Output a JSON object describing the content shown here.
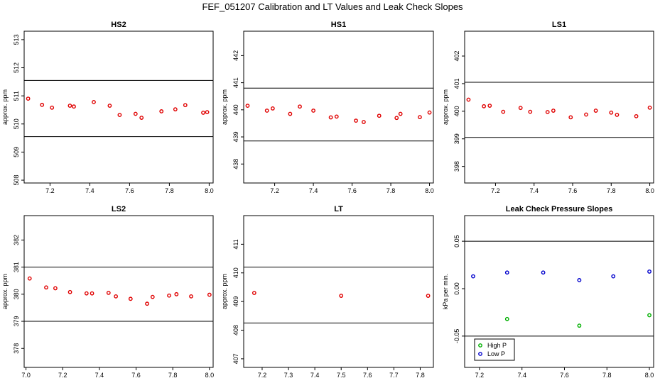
{
  "title": "FEF_051207  Calibration and LT Values and Leak Check Slopes",
  "chart_data": [
    {
      "type": "scatter",
      "title": "HS2",
      "ylabel": "approx. ppm",
      "xlim": [
        7.07,
        8.02
      ],
      "ylim": [
        507.9,
        513.3
      ],
      "xticks": [
        "7.2",
        "7.4",
        "7.6",
        "7.8",
        "8.0"
      ],
      "yticks": [
        "508",
        "509",
        "510",
        "511",
        "512",
        "513"
      ],
      "hlines": [
        511.55,
        509.55
      ],
      "series": [
        {
          "color": "#e00000",
          "points": [
            [
              7.09,
              510.9
            ],
            [
              7.16,
              510.68
            ],
            [
              7.21,
              510.58
            ],
            [
              7.3,
              510.65
            ],
            [
              7.32,
              510.62
            ],
            [
              7.42,
              510.78
            ],
            [
              7.5,
              510.65
            ],
            [
              7.55,
              510.32
            ],
            [
              7.63,
              510.36
            ],
            [
              7.66,
              510.22
            ],
            [
              7.76,
              510.45
            ],
            [
              7.83,
              510.52
            ],
            [
              7.88,
              510.67
            ],
            [
              7.97,
              510.4
            ],
            [
              7.99,
              510.42
            ]
          ]
        }
      ]
    },
    {
      "type": "scatter",
      "title": "HS1",
      "ylabel": "approx. ppm",
      "xlim": [
        7.04,
        8.02
      ],
      "ylim": [
        437.3,
        442.9
      ],
      "xticks": [
        "7.2",
        "7.4",
        "7.6",
        "7.8",
        "8.0"
      ],
      "yticks": [
        "438",
        "439",
        "440",
        "441",
        "442"
      ],
      "hlines": [
        440.8,
        438.85
      ],
      "series": [
        {
          "color": "#e00000",
          "points": [
            [
              7.06,
              440.15
            ],
            [
              7.16,
              439.97
            ],
            [
              7.19,
              440.05
            ],
            [
              7.28,
              439.85
            ],
            [
              7.33,
              440.12
            ],
            [
              7.4,
              439.97
            ],
            [
              7.49,
              439.72
            ],
            [
              7.52,
              439.75
            ],
            [
              7.62,
              439.6
            ],
            [
              7.66,
              439.55
            ],
            [
              7.74,
              439.78
            ],
            [
              7.83,
              439.7
            ],
            [
              7.85,
              439.85
            ],
            [
              7.95,
              439.73
            ],
            [
              8.0,
              439.9
            ]
          ]
        }
      ]
    },
    {
      "type": "scatter",
      "title": "LS1",
      "ylabel": "approx. ppm",
      "xlim": [
        7.04,
        8.02
      ],
      "ylim": [
        397.4,
        402.9
      ],
      "xticks": [
        "7.2",
        "7.4",
        "7.6",
        "7.8",
        "8.0"
      ],
      "yticks": [
        "398",
        "399",
        "400",
        "401",
        "402"
      ],
      "hlines": [
        401.05,
        399.05
      ],
      "series": [
        {
          "color": "#e00000",
          "points": [
            [
              7.06,
              400.42
            ],
            [
              7.14,
              400.18
            ],
            [
              7.17,
              400.2
            ],
            [
              7.24,
              399.98
            ],
            [
              7.33,
              400.12
            ],
            [
              7.38,
              399.98
            ],
            [
              7.47,
              399.97
            ],
            [
              7.5,
              400.02
            ],
            [
              7.59,
              399.78
            ],
            [
              7.67,
              399.88
            ],
            [
              7.72,
              400.02
            ],
            [
              7.8,
              399.95
            ],
            [
              7.83,
              399.87
            ],
            [
              7.93,
              399.82
            ],
            [
              8.0,
              400.13
            ]
          ]
        }
      ]
    },
    {
      "type": "scatter",
      "title": "LS2",
      "ylabel": "approx. ppm",
      "xlim": [
        6.99,
        8.02
      ],
      "ylim": [
        377.3,
        382.9
      ],
      "xticks": [
        "7.0",
        "7.2",
        "7.4",
        "7.6",
        "7.8",
        "8.0"
      ],
      "yticks": [
        "378",
        "379",
        "380",
        "381",
        "382"
      ],
      "hlines": [
        381.0,
        379.0
      ],
      "series": [
        {
          "color": "#e00000",
          "points": [
            [
              7.02,
              380.58
            ],
            [
              7.11,
              380.25
            ],
            [
              7.16,
              380.22
            ],
            [
              7.24,
              380.08
            ],
            [
              7.33,
              380.03
            ],
            [
              7.36,
              380.03
            ],
            [
              7.45,
              380.05
            ],
            [
              7.49,
              379.92
            ],
            [
              7.57,
              379.83
            ],
            [
              7.66,
              379.65
            ],
            [
              7.69,
              379.9
            ],
            [
              7.78,
              379.95
            ],
            [
              7.82,
              380.0
            ],
            [
              7.9,
              379.92
            ],
            [
              8.0,
              379.98
            ]
          ]
        }
      ]
    },
    {
      "type": "scatter",
      "title": "LT",
      "ylabel": "approx. ppm",
      "xlim": [
        7.13,
        7.85
      ],
      "ylim": [
        406.7,
        412.0
      ],
      "xticks": [
        "7.2",
        "7.3",
        "7.4",
        "7.5",
        "7.6",
        "7.7",
        "7.8"
      ],
      "yticks": [
        "407",
        "408",
        "409",
        "410",
        "411"
      ],
      "hlines": [
        410.2,
        408.25
      ],
      "series": [
        {
          "color": "#e00000",
          "points": [
            [
              7.17,
              409.3
            ],
            [
              7.5,
              409.2
            ],
            [
              7.83,
              409.2
            ]
          ]
        }
      ]
    },
    {
      "type": "scatter",
      "title": "Leak Check Pressure Slopes",
      "ylabel": "kPa per min.",
      "xlim": [
        7.13,
        8.02
      ],
      "ylim": [
        -0.083,
        0.077
      ],
      "xticks": [
        "7.2",
        "7.4",
        "7.6",
        "7.8",
        "8.0"
      ],
      "yticks": [
        "-0.05",
        "0.00",
        "0.05"
      ],
      "hlines": [
        0.05,
        -0.05
      ],
      "legend": "bottom-left",
      "series": [
        {
          "name": "High P",
          "color": "#00b000",
          "points": [
            [
              7.33,
              -0.032
            ],
            [
              7.67,
              -0.039
            ],
            [
              8.0,
              -0.028
            ]
          ]
        },
        {
          "name": "Low P",
          "color": "#0000cc",
          "points": [
            [
              7.17,
              0.013
            ],
            [
              7.33,
              0.017
            ],
            [
              7.5,
              0.017
            ],
            [
              7.67,
              0.009
            ],
            [
              7.83,
              0.013
            ],
            [
              8.0,
              0.018
            ]
          ]
        }
      ]
    }
  ]
}
